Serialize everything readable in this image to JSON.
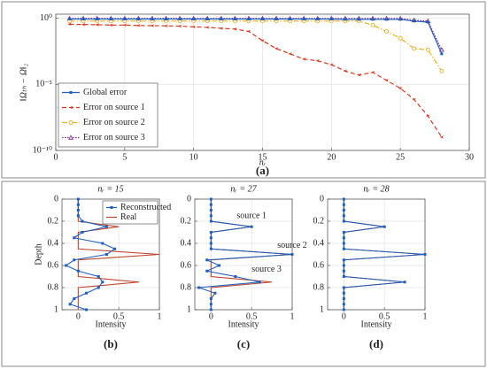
{
  "chart_data": [
    {
      "type": "line",
      "xlabel": "nᵣ",
      "ylabel": "‖Ωₜₕ − Ω‖₂",
      "caption": "(a)",
      "x": [
        1,
        2,
        3,
        4,
        5,
        6,
        7,
        8,
        9,
        10,
        11,
        12,
        13,
        14,
        15,
        16,
        17,
        18,
        19,
        20,
        21,
        22,
        23,
        24,
        25,
        26,
        27,
        28
      ],
      "series": [
        {
          "name": "Global error",
          "color": "#1f5fbf",
          "dash": "solid",
          "marker": "square",
          "values": [
            0.85,
            0.85,
            0.85,
            0.85,
            0.85,
            0.85,
            0.85,
            0.85,
            0.85,
            0.85,
            0.85,
            0.85,
            0.85,
            0.85,
            0.85,
            0.85,
            0.85,
            0.85,
            0.85,
            0.85,
            0.8,
            0.8,
            0.8,
            0.8,
            0.8,
            0.6,
            0.5,
            0.002
          ]
        },
        {
          "name": "Error on source 1",
          "color": "#d9381e",
          "dash": "dashed",
          "marker": "arrow",
          "values": [
            0.35,
            0.33,
            0.32,
            0.3,
            0.3,
            0.28,
            0.27,
            0.26,
            0.25,
            0.22,
            0.2,
            0.17,
            0.15,
            0.1,
            0.02,
            0.005,
            0.002,
            0.0008,
            0.0006,
            0.0003,
            0.0001,
            5e-05,
            8e-05,
            2e-05,
            5e-06,
            7e-07,
            4e-08,
            1e-09
          ]
        },
        {
          "name": "Error on source 2",
          "color": "#edb120",
          "dash": "dashdot",
          "marker": "circle",
          "values": [
            0.6,
            0.6,
            0.6,
            0.6,
            0.6,
            0.6,
            0.6,
            0.6,
            0.6,
            0.6,
            0.6,
            0.6,
            0.6,
            0.6,
            0.6,
            0.6,
            0.6,
            0.6,
            0.6,
            0.6,
            0.6,
            0.6,
            0.3,
            0.1,
            0.03,
            0.005,
            0.004,
            0.0001
          ]
        },
        {
          "name": "Error on source 3",
          "color": "#7e2f8e",
          "dash": "dotted",
          "marker": "triangle",
          "values": [
            0.95,
            0.95,
            0.95,
            0.95,
            0.95,
            0.95,
            0.95,
            0.95,
            0.95,
            0.95,
            0.95,
            0.95,
            0.95,
            0.95,
            0.95,
            0.95,
            0.95,
            0.95,
            0.95,
            0.95,
            0.95,
            0.95,
            0.95,
            0.95,
            0.95,
            0.7,
            0.6,
            0.004
          ]
        }
      ],
      "xlim": [
        0,
        30
      ],
      "xticks": [
        0,
        5,
        10,
        15,
        20,
        25,
        30
      ],
      "ylim": [
        1e-10,
        2
      ],
      "log_y": true,
      "yticks": [
        {
          "value": 1,
          "label": "10⁰"
        },
        {
          "value": 1e-05,
          "label": "10⁻⁵"
        },
        {
          "value": 1e-10,
          "label": "10⁻¹⁰"
        }
      ],
      "grid": true,
      "legend": "lower left"
    },
    {
      "type": "line",
      "title": "nᵣ = 15",
      "xlabel": "Intensity",
      "ylabel": "Depth",
      "caption": "(b)",
      "y": [
        0,
        0.05,
        0.1,
        0.15,
        0.2,
        0.25,
        0.3,
        0.35,
        0.4,
        0.45,
        0.5,
        0.55,
        0.6,
        0.65,
        0.7,
        0.75,
        0.8,
        0.85,
        0.9,
        0.95,
        1
      ],
      "series": [
        {
          "name": "Reconstructed",
          "color": "#1f5fbf",
          "marker": "square",
          "values": [
            0,
            0,
            0,
            0,
            0.05,
            0.35,
            0.05,
            -0.05,
            0.3,
            0.45,
            0.35,
            -0.05,
            -0.15,
            0,
            0.25,
            0.3,
            0.25,
            0.1,
            -0.05,
            -0.1,
            0.1
          ]
        },
        {
          "name": "Real",
          "color": "#c0432c",
          "values": [
            0,
            0,
            0,
            0,
            0,
            0.5,
            0,
            0,
            0,
            0,
            1,
            0,
            0,
            0,
            0,
            0.75,
            0,
            0,
            0,
            0,
            0
          ]
        }
      ],
      "xlim": [
        -0.2,
        1
      ],
      "xticks": [
        0,
        0.5,
        1
      ],
      "ylim": [
        1,
        0
      ],
      "yticks": [
        0,
        0.2,
        0.4,
        0.6,
        0.8,
        1
      ],
      "grid": true,
      "legend": "upper right"
    },
    {
      "type": "line",
      "title": "nᵣ = 27",
      "xlabel": "Intensity",
      "caption": "(c)",
      "annotations": [
        "source 1",
        "source 2",
        "source 3"
      ],
      "y": [
        0,
        0.05,
        0.1,
        0.15,
        0.2,
        0.25,
        0.3,
        0.35,
        0.4,
        0.45,
        0.5,
        0.55,
        0.6,
        0.65,
        0.7,
        0.75,
        0.8,
        0.85,
        0.9,
        0.95,
        1
      ],
      "series": [
        {
          "name": "Reconstructed",
          "color": "#1f5fbf",
          "marker": "square",
          "values": [
            0,
            0,
            0,
            0,
            0,
            0.5,
            0,
            0,
            0,
            0,
            1,
            -0.05,
            0.1,
            -0.05,
            0.3,
            0.6,
            -0.15,
            0.05,
            0,
            0,
            0
          ]
        },
        {
          "name": "Real",
          "color": "#c0432c",
          "values": [
            0,
            0,
            0,
            0,
            0,
            0.5,
            0,
            0,
            0,
            0,
            1,
            0,
            0,
            0,
            0,
            0.75,
            0,
            0,
            0,
            0,
            0
          ]
        }
      ],
      "xlim": [
        -0.2,
        1
      ],
      "xticks": [
        0,
        0.5,
        1
      ],
      "ylim": [
        1,
        0
      ],
      "yticks": [
        0,
        0.2,
        0.4,
        0.6,
        0.8,
        1
      ],
      "grid": true
    },
    {
      "type": "line",
      "title": "nᵣ = 28",
      "xlabel": "Intensity",
      "caption": "(d)",
      "y": [
        0,
        0.05,
        0.1,
        0.15,
        0.2,
        0.25,
        0.3,
        0.35,
        0.4,
        0.45,
        0.5,
        0.55,
        0.6,
        0.65,
        0.7,
        0.75,
        0.8,
        0.85,
        0.9,
        0.95,
        1
      ],
      "series": [
        {
          "name": "Reconstructed",
          "color": "#1f5fbf",
          "marker": "square",
          "values": [
            0,
            0,
            0,
            0,
            0,
            0.5,
            0,
            0,
            0,
            0,
            1,
            0,
            0,
            0,
            0,
            0.75,
            0,
            0,
            0,
            0,
            0
          ]
        },
        {
          "name": "Real",
          "color": "#c0432c",
          "values": [
            0,
            0,
            0,
            0,
            0,
            0.5,
            0,
            0,
            0,
            0,
            1,
            0,
            0,
            0,
            0,
            0.75,
            0,
            0,
            0,
            0,
            0
          ]
        }
      ],
      "xlim": [
        -0.2,
        1
      ],
      "xticks": [
        0,
        0.5,
        1
      ],
      "ylim": [
        1,
        0
      ],
      "yticks": [
        0,
        0.2,
        0.4,
        0.6,
        0.8,
        1
      ],
      "grid": true
    }
  ]
}
